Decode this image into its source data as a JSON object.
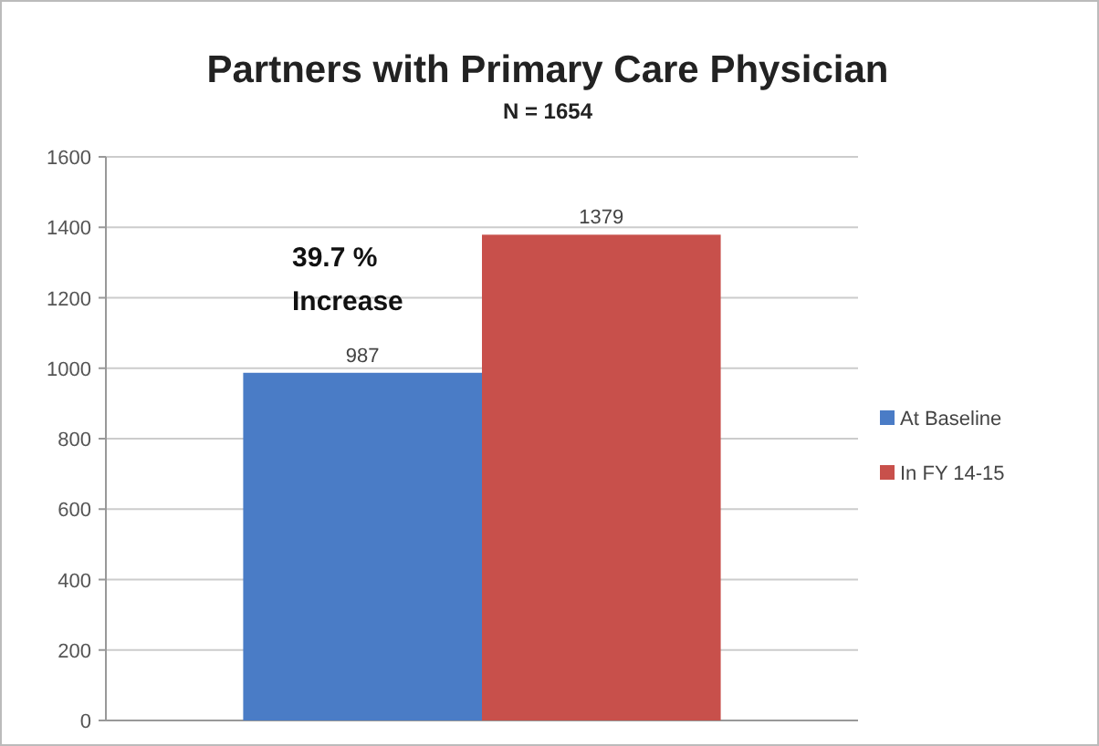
{
  "chart_data": {
    "type": "bar",
    "title": "Partners with Primary Care Physician",
    "subtitle": "N = 1654",
    "categories": [
      null
    ],
    "series": [
      {
        "name": "At Baseline",
        "color": "#4a7cc6",
        "values": [
          987
        ]
      },
      {
        "name": "In FY 14-15",
        "color": "#c8504b",
        "values": [
          1379
        ]
      }
    ],
    "ylim": [
      0,
      1600
    ],
    "yticks": [
      0,
      200,
      400,
      600,
      800,
      1000,
      1200,
      1400,
      1600
    ],
    "grid": "y",
    "legend": "right",
    "data_labels": true,
    "annotations": [
      "39.7 %\nIncrease"
    ]
  }
}
